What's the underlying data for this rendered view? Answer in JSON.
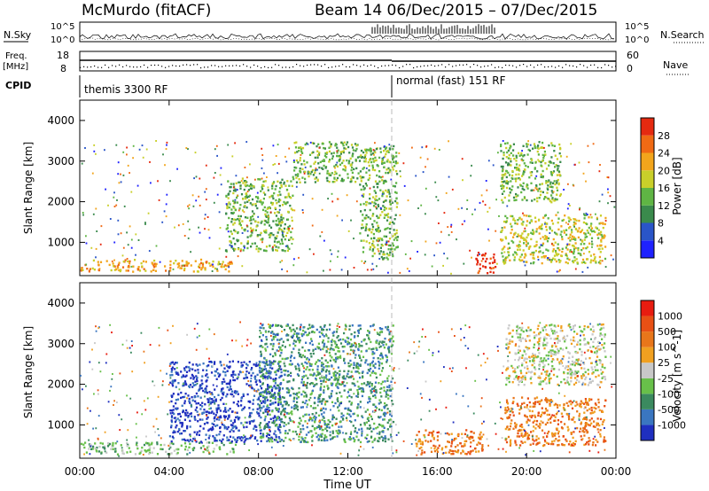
{
  "header": {
    "station": "McMurdo (fitACF)",
    "beam_info": "Beam 14  06/Dec/2015 – 07/Dec/2015"
  },
  "top_panels": {
    "nsky_label": "N.Sky",
    "nsearch_label": "N.Search",
    "nsky_ticks": [
      "10^5",
      "10^0"
    ],
    "nsearch_ticks": [
      "10^5",
      "10^0"
    ],
    "freq_label_1": "Freq.",
    "freq_label_2": "[MHz]",
    "freq_ticks": [
      "18",
      "8"
    ],
    "nave_label": "Nave",
    "nave_ticks": [
      "60",
      "0"
    ],
    "cpid_label": "CPID",
    "cpid_segments": [
      {
        "name": "themis 3300 RF",
        "start_hour": 0
      },
      {
        "name": "normal (fast) 151 RF",
        "start_hour": 14
      }
    ]
  },
  "x_axis": {
    "label": "Time UT",
    "ticks": [
      "00:00",
      "04:00",
      "08:00",
      "12:00",
      "16:00",
      "20:00",
      "00:00"
    ]
  },
  "colors": {
    "power_scale": [
      "#1f22ff",
      "#2a55c8",
      "#3a8a4c",
      "#5fb544",
      "#c9cf2a",
      "#f2a51c",
      "#f06a14",
      "#e52a10"
    ],
    "velocity_scale": [
      "#1f2fbf",
      "#3a76c0",
      "#3b8a5f",
      "#68c04a",
      "#c8c8c8",
      "#f0a020",
      "#e8761a",
      "#e85015",
      "#e81c10"
    ]
  },
  "chart_data": [
    {
      "type": "heatmap",
      "name": "power",
      "xlabel": "Time UT",
      "ylabel": "Slant Range [km]",
      "xlim": [
        0,
        24
      ],
      "ylim": [
        180,
        4500
      ],
      "yticks": [
        "1000",
        "2000",
        "3000",
        "4000"
      ],
      "colorbar": {
        "label": "Power [dB]",
        "ticks": [
          "4",
          "8",
          "12",
          "16",
          "20",
          "24",
          "28"
        ]
      },
      "features": [
        {
          "t0": 0,
          "t1": 6.8,
          "r0": 300,
          "r1": 600,
          "level": 5
        },
        {
          "t0": 6.5,
          "t1": 9.5,
          "r0": 800,
          "r1": 2600,
          "level": 3
        },
        {
          "t0": 9.5,
          "t1": 12.5,
          "r0": 2500,
          "r1": 3500,
          "level": 3
        },
        {
          "t0": 12.5,
          "t1": 14.2,
          "r0": 600,
          "r1": 3400,
          "level": 3
        },
        {
          "t0": 17.7,
          "t1": 18.6,
          "r0": 250,
          "r1": 800,
          "level": 7
        },
        {
          "t0": 18.8,
          "t1": 23.5,
          "r0": 500,
          "r1": 1700,
          "level": 4
        },
        {
          "t0": 18.8,
          "t1": 21.5,
          "r0": 2000,
          "r1": 3500,
          "level": 3
        }
      ]
    },
    {
      "type": "heatmap",
      "name": "velocity",
      "xlabel": "Time UT",
      "ylabel": "Slant Range [km]",
      "xlim": [
        0,
        24
      ],
      "ylim": [
        180,
        4500
      ],
      "yticks": [
        "1000",
        "2000",
        "3000",
        "4000"
      ],
      "colorbar": {
        "label": "Velocity [m s^-1]",
        "ticks": [
          "1000",
          "500",
          "100",
          "25",
          "-25",
          "-100",
          "-500",
          "-1000"
        ]
      },
      "features": [
        {
          "t0": 0,
          "t1": 7.0,
          "r0": 300,
          "r1": 600,
          "level": 3
        },
        {
          "t0": 4.0,
          "t1": 9.0,
          "r0": 600,
          "r1": 2600,
          "level": 0
        },
        {
          "t0": 8.0,
          "t1": 14.0,
          "r0": 600,
          "r1": 3500,
          "level": 2
        },
        {
          "t0": 15.0,
          "t1": 18.0,
          "r0": 300,
          "r1": 900,
          "level": 6
        },
        {
          "t0": 19.0,
          "t1": 23.5,
          "r0": 500,
          "r1": 1700,
          "level": 6
        },
        {
          "t0": 19.0,
          "t1": 23.5,
          "r0": 2000,
          "r1": 3500,
          "level": 4
        }
      ]
    }
  ]
}
